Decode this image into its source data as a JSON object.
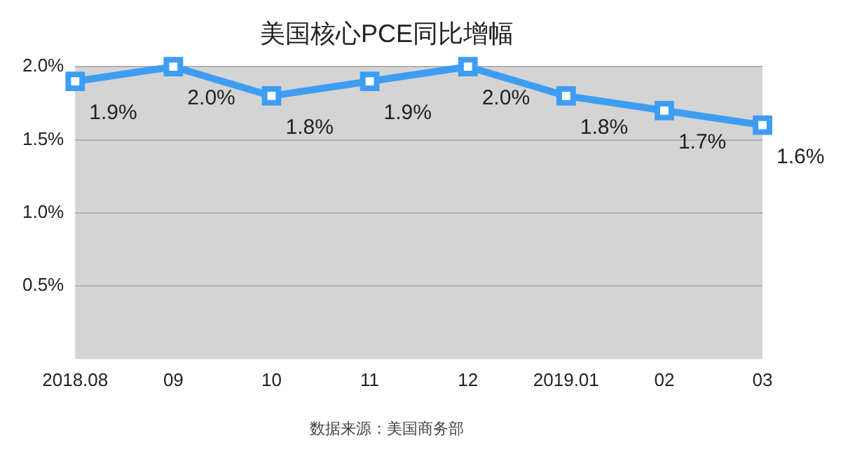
{
  "chart_data": {
    "type": "line",
    "title": "美国核心PCE同比增幅",
    "categories": [
      "2018.08",
      "09",
      "10",
      "11",
      "12",
      "2019.01",
      "02",
      "03"
    ],
    "series": [
      {
        "color": "#3d9df2",
        "values": [
          1.9,
          2.0,
          1.8,
          1.9,
          2.0,
          1.8,
          1.7,
          1.6
        ],
        "value_labels": [
          "1.9%",
          "2.0%",
          "1.8%",
          "1.9%",
          "2.0%",
          "1.8%",
          "1.7%",
          "1.6%"
        ]
      }
    ],
    "ylim": [
      0,
      2.0
    ],
    "yticks": [
      {
        "value": 0.5,
        "label": "0.5%"
      },
      {
        "value": 1.0,
        "label": "1.0%"
      },
      {
        "value": 1.5,
        "label": "1.5%"
      },
      {
        "value": 2.0,
        "label": "2.0%"
      }
    ],
    "grid": "y",
    "legend": false,
    "marker": "square",
    "line_style": "solid",
    "annotations": [
      "数据来源：美国商务部"
    ]
  }
}
